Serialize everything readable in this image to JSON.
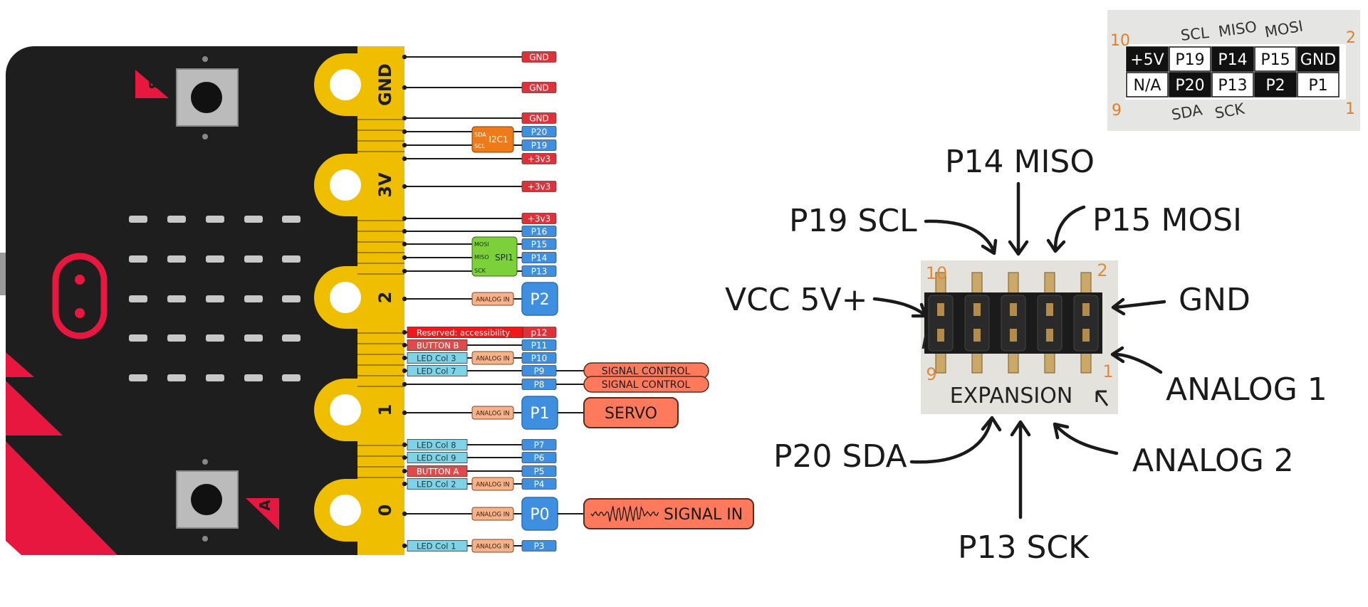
{
  "board": {
    "button_b_label": "B",
    "button_a_label": "A",
    "edge_labels": [
      "GND",
      "3V",
      "2",
      "1",
      "0"
    ],
    "colors": {
      "board": "#1e1e1e",
      "edge": "#f0be00",
      "accent_red": "#e8173f",
      "led": "#c8c8c8"
    }
  },
  "pinout": {
    "colors": {
      "gnd": "#e0313a",
      "power": "#e0313a",
      "pin": "#3f8fe0",
      "i2c": "#ef7a1a",
      "spi": "#7cd13a",
      "analog": "#f7b28a",
      "led": "#7ed3e6",
      "button": "#e24a4a",
      "accessibility": "#f01818",
      "signal": "#ff7a5c"
    },
    "i2c_label": "I2C1",
    "i2c_lines": [
      "SDA",
      "SCL"
    ],
    "spi_label": "SPI1",
    "spi_lines": [
      "MOSI",
      "MISO",
      "SCK"
    ],
    "rows": [
      {
        "pin": "GND",
        "kind": "gnd"
      },
      {
        "pin": "GND",
        "kind": "gnd"
      },
      {
        "pin": "GND",
        "kind": "gnd"
      },
      {
        "pin": "P20",
        "kind": "pin"
      },
      {
        "pin": "P19",
        "kind": "pin"
      },
      {
        "pin": "+3v3",
        "kind": "power"
      },
      {
        "pin": "+3v3",
        "kind": "power"
      },
      {
        "pin": "+3v3",
        "kind": "power"
      },
      {
        "pin": "P16",
        "kind": "pin"
      },
      {
        "pin": "P15",
        "kind": "pin"
      },
      {
        "pin": "P14",
        "kind": "pin"
      },
      {
        "pin": "P13",
        "kind": "pin"
      },
      {
        "pin": "P2",
        "kind": "big",
        "analog": "ANALOG IN"
      },
      {
        "pin": "p12",
        "kind": "gnd",
        "func": "Reserved: accessibility",
        "func_kind": "accessibility"
      },
      {
        "pin": "P11",
        "kind": "pin",
        "func": "BUTTON B",
        "func_kind": "button"
      },
      {
        "pin": "P10",
        "kind": "pin",
        "func": "LED Col 3",
        "func_kind": "led",
        "analog": "ANALOG IN"
      },
      {
        "pin": "P9",
        "kind": "pin",
        "func": "LED Col 7",
        "func_kind": "led",
        "signal": "SIGNAL CONTROL"
      },
      {
        "pin": "P8",
        "kind": "pin",
        "signal": "SIGNAL CONTROL"
      },
      {
        "pin": "P1",
        "kind": "big",
        "analog": "ANALOG IN",
        "big_signal": "SERVO"
      },
      {
        "pin": "P7",
        "kind": "pin",
        "func": "LED Col 8",
        "func_kind": "led"
      },
      {
        "pin": "P6",
        "kind": "pin",
        "func": "LED Col 9",
        "func_kind": "led"
      },
      {
        "pin": "P5",
        "kind": "pin",
        "func": "BUTTON A",
        "func_kind": "button"
      },
      {
        "pin": "P4",
        "kind": "pin",
        "func": "LED Col 2",
        "func_kind": "led",
        "analog": "ANALOG IN"
      },
      {
        "pin": "P0",
        "kind": "big",
        "analog": "ANALOG IN",
        "big_signal": "SIGNAL IN"
      },
      {
        "pin": "P3",
        "kind": "pin",
        "func": "LED Col 1",
        "func_kind": "led",
        "analog": "ANALOG IN"
      }
    ]
  },
  "photo": {
    "corner_numbers": {
      "top_left": "10",
      "top_right": "2",
      "bottom_left": "9",
      "bottom_right": "1"
    },
    "top_labels": [
      "SCL",
      "MISO",
      "MOSI"
    ],
    "bottom_labels": [
      "SDA",
      "SCK"
    ],
    "row1": [
      "+5V",
      "P19",
      "P14",
      "P15",
      "GND"
    ],
    "row2": [
      "N/A",
      "P20",
      "P13",
      "P2",
      "P1"
    ]
  },
  "expansion": {
    "header_label": "EXPANSION",
    "header_numbers": {
      "top_left": "10",
      "top_right": "2",
      "bottom_left": "9",
      "bottom_right": "1"
    },
    "callouts": {
      "p14": "P14 MISO",
      "p19": "P19 SCL",
      "p15": "P15 MOSI",
      "vcc": "VCC 5V+",
      "gnd": "GND",
      "analog1": "ANALOG 1",
      "p20": "P20 SDA",
      "analog2": "ANALOG 2",
      "p13": "P13 SCK"
    }
  }
}
